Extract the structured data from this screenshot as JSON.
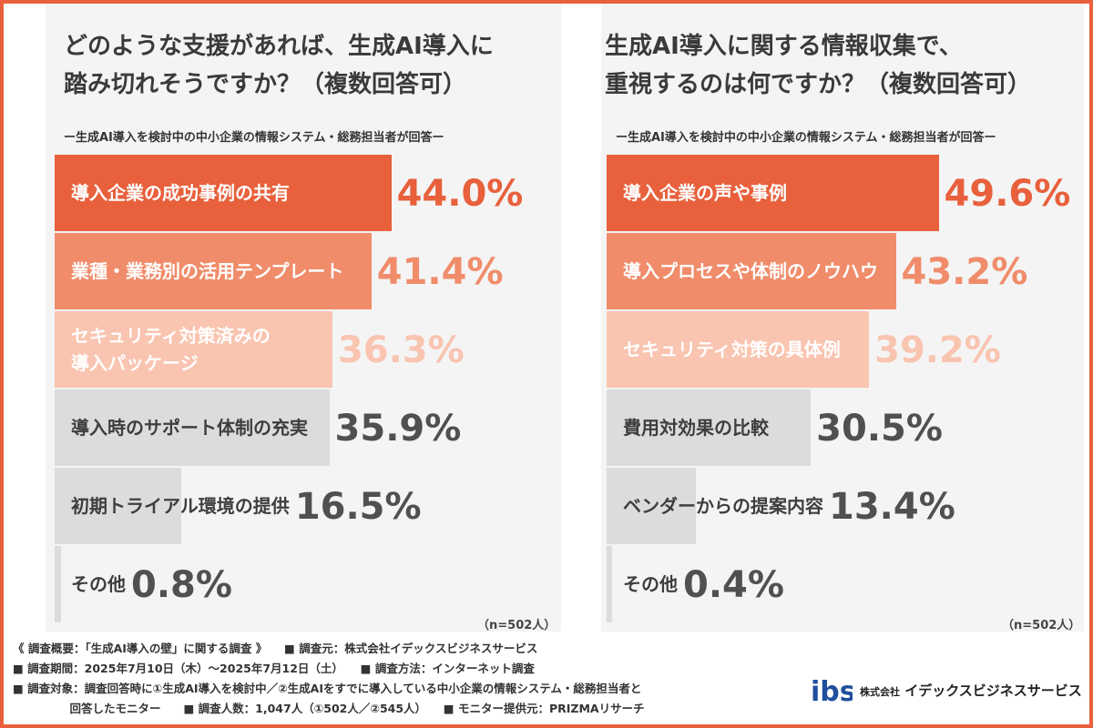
{
  "left": {
    "title_line1": "どのような支援があれば、生成AI導入に",
    "title_line2": "踏み切れそうですか？（複数回答可）",
    "subtitle": "ー生成AI導入を検討中の中小企業の情報システム・総務担当者が回答ー",
    "n_note": "（n=502人）"
  },
  "right": {
    "title_line1": "生成AI導入に関する情報収集で、",
    "title_line2": "重視するのは何ですか？（複数回答可）",
    "subtitle": "ー生成AI導入を検討中の中小企業の情報システム・総務担当者が回答ー",
    "n_note": "（n=502人）"
  },
  "chart_data": [
    {
      "type": "bar",
      "orientation": "horizontal",
      "title": "どのような支援があれば、生成AI導入に踏み切れそうですか？（複数回答可）",
      "unit": "%",
      "categories": [
        "導入企業の成功事例の共有",
        "業種・業務別の活用テンプレート",
        "セキュリティ対策済みの導入パッケージ",
        "導入時のサポート体制の充実",
        "初期トライアル環境の提供",
        "その他"
      ],
      "values": [
        44.0,
        41.4,
        36.3,
        35.9,
        16.5,
        0.8
      ],
      "value_labels": [
        "44.0%",
        "41.4%",
        "36.3%",
        "35.9%",
        "16.5%",
        "0.8%"
      ],
      "bar_colors": [
        "#e8603c",
        "#f08c6a",
        "#f9c4b0",
        "#dcdcdc",
        "#dcdcdc",
        "#dcdcdc"
      ],
      "value_colors": [
        "#e8603c",
        "#f08c6a",
        "#f9c4b0",
        "#505050",
        "#505050",
        "#505050"
      ]
    },
    {
      "type": "bar",
      "orientation": "horizontal",
      "title": "生成AI導入に関する情報収集で、重視するのは何ですか？（複数回答可）",
      "unit": "%",
      "categories": [
        "導入企業の声や事例",
        "導入プロセスや体制のノウハウ",
        "セキュリティ対策の具体例",
        "費用対効果の比較",
        "ベンダーからの提案内容",
        "その他"
      ],
      "values": [
        49.6,
        43.2,
        39.2,
        30.5,
        13.4,
        0.4
      ],
      "value_labels": [
        "49.6%",
        "43.2%",
        "39.2%",
        "30.5%",
        "13.4%",
        "0.4%"
      ],
      "bar_colors": [
        "#e8603c",
        "#f08c6a",
        "#f9c4b0",
        "#dcdcdc",
        "#dcdcdc",
        "#dcdcdc"
      ],
      "value_colors": [
        "#e8603c",
        "#f08c6a",
        "#f9c4b0",
        "#505050",
        "#505050",
        "#505050"
      ]
    }
  ],
  "left_labels": [
    [
      "導入企業の成功事例の共有"
    ],
    [
      "業種・業務別の活用テンプレート"
    ],
    [
      "セキュリティ対策済みの",
      "導入パッケージ"
    ],
    [
      "導入時のサポート体制の充実"
    ],
    [
      "初期トライアル環境の提供"
    ],
    [
      "その他"
    ]
  ],
  "right_labels": [
    [
      "導入企業の声や事例"
    ],
    [
      "導入プロセスや体制のノウハウ"
    ],
    [
      "セキュリティ対策の具体例"
    ],
    [
      "費用対効果の比較"
    ],
    [
      "ベンダーからの提案内容"
    ],
    [
      "その他"
    ]
  ],
  "footer": {
    "line1": "《 調査概要：「生成AI導入の壁」に関する調査 》　　■ 調査元：株式会社イデックスビジネスサービス",
    "line2": "■ 調査期間：2025年7月10日（木）～2025年7月12日（土）　　■ 調査方法：インターネット調査",
    "line3": "■ 調査対象：調査回答時に①生成AI導入を検討中／②生成AIをすでに導入している中小企業の情報システム・総務担当者と",
    "line4": "　　　　　回答したモニター　　■ 調査人数：1,047人（①502人／②545人）　　■ モニター提供元：PRIZMAリサーチ"
  },
  "company": {
    "logo_text": "ibs",
    "prefix": "株式会社",
    "name": "イデックスビジネスサービス"
  },
  "colors": {
    "accent": "#e8603c",
    "bar_second": "#f08c6a",
    "bar_third": "#f9c4b0",
    "bar_gray": "#dcdcdc",
    "logo_blue": "#1f4e9c"
  }
}
